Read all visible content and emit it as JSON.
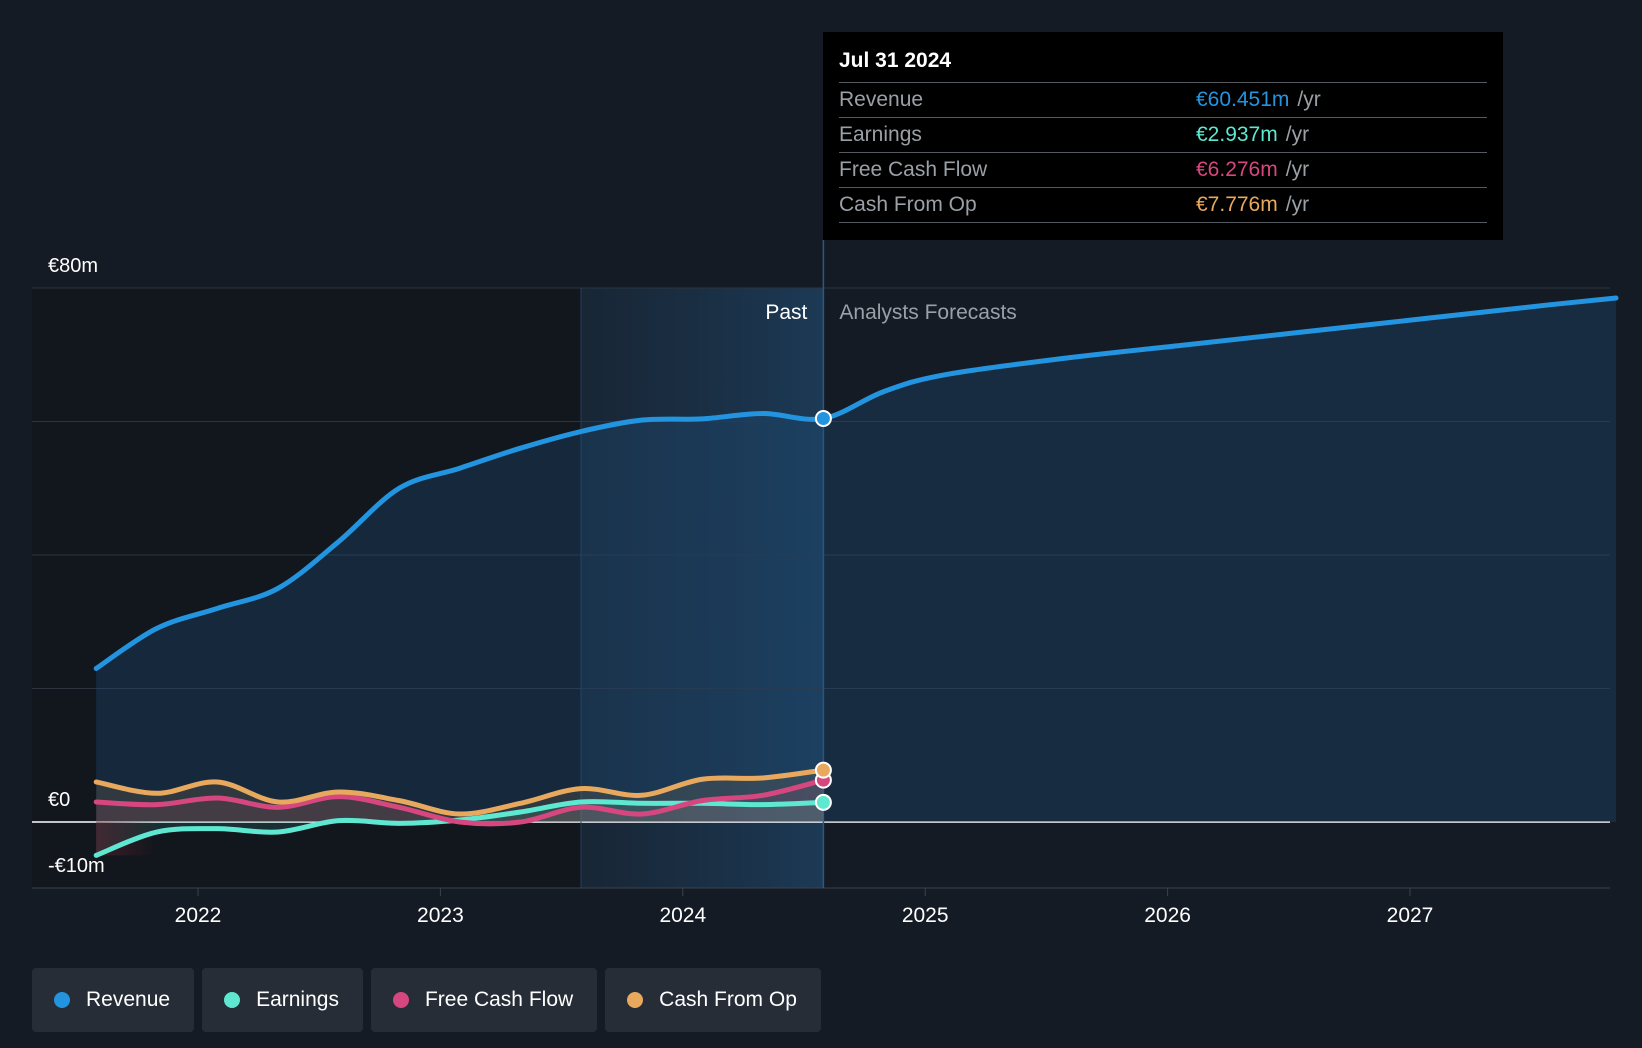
{
  "tooltip": {
    "date": "Jul 31 2024",
    "rows": [
      {
        "label": "Revenue",
        "value": "€60.451m",
        "unit": "/yr",
        "color": "#2394df"
      },
      {
        "label": "Earnings",
        "value": "€2.937m",
        "unit": "/yr",
        "color": "#5ee8d2"
      },
      {
        "label": "Free Cash Flow",
        "value": "€6.276m",
        "unit": "/yr",
        "color": "#d6477f"
      },
      {
        "label": "Cash From Op",
        "value": "€7.776m",
        "unit": "/yr",
        "color": "#e8a95e"
      }
    ]
  },
  "legend": [
    {
      "label": "Revenue",
      "color": "#2394df"
    },
    {
      "label": "Earnings",
      "color": "#5ee8d2"
    },
    {
      "label": "Free Cash Flow",
      "color": "#d6477f"
    },
    {
      "label": "Cash From Op",
      "color": "#e8a95e"
    }
  ],
  "chart_data": {
    "type": "line",
    "title": "",
    "xlabel": "",
    "ylabel": "",
    "ylim": [
      -10,
      80
    ],
    "xlim": [
      2021.58,
      2027.85
    ],
    "y_axis_labels": [
      {
        "value": 80,
        "label": "€80m"
      },
      {
        "value": 0,
        "label": "€0"
      },
      {
        "value": -10,
        "label": "-€10m"
      }
    ],
    "gridlines": [
      80,
      60,
      40,
      20,
      0
    ],
    "x_ticks": [
      2022,
      2023,
      2024,
      2025,
      2026,
      2027
    ],
    "past_label": "Past",
    "forecast_label": "Analysts Forecasts",
    "divider_x": 2024.58,
    "shade_start_x": 2023.58,
    "series": [
      {
        "name": "Revenue",
        "color": "#2394df",
        "points": [
          [
            2021.58,
            23
          ],
          [
            2021.83,
            29
          ],
          [
            2022.08,
            32
          ],
          [
            2022.33,
            35
          ],
          [
            2022.58,
            42
          ],
          [
            2022.83,
            50
          ],
          [
            2023.08,
            53
          ],
          [
            2023.33,
            56
          ],
          [
            2023.58,
            58.5
          ],
          [
            2023.83,
            60.2
          ],
          [
            2024.08,
            60.4
          ],
          [
            2024.33,
            61.2
          ],
          [
            2024.58,
            60.451
          ],
          [
            2024.83,
            64.5
          ],
          [
            2025.08,
            67
          ],
          [
            2025.58,
            69.5
          ],
          [
            2026.08,
            71.5
          ],
          [
            2026.58,
            73.5
          ],
          [
            2027.08,
            75.5
          ],
          [
            2027.58,
            77.5
          ],
          [
            2027.85,
            78.5
          ]
        ],
        "end_marker": [
          2024.58,
          60.451
        ]
      },
      {
        "name": "Earnings",
        "color": "#5ee8d2",
        "points": [
          [
            2021.58,
            -5
          ],
          [
            2021.83,
            -1.5
          ],
          [
            2022.08,
            -1
          ],
          [
            2022.33,
            -1.5
          ],
          [
            2022.58,
            0.2
          ],
          [
            2022.83,
            -0.2
          ],
          [
            2023.08,
            0.3
          ],
          [
            2023.33,
            1.5
          ],
          [
            2023.58,
            3
          ],
          [
            2023.83,
            2.8
          ],
          [
            2024.08,
            2.8
          ],
          [
            2024.33,
            2.6
          ],
          [
            2024.58,
            2.937
          ]
        ],
        "end_marker": [
          2024.58,
          2.937
        ]
      },
      {
        "name": "Free Cash Flow",
        "color": "#d6477f",
        "points": [
          [
            2021.58,
            3
          ],
          [
            2021.83,
            2.6
          ],
          [
            2022.08,
            3.6
          ],
          [
            2022.33,
            2.2
          ],
          [
            2022.58,
            3.8
          ],
          [
            2022.83,
            2.2
          ],
          [
            2023.08,
            0
          ],
          [
            2023.33,
            0
          ],
          [
            2023.58,
            2.2
          ],
          [
            2023.83,
            1.2
          ],
          [
            2024.08,
            3.2
          ],
          [
            2024.33,
            4
          ],
          [
            2024.58,
            6.276
          ]
        ],
        "end_marker": [
          2024.58,
          6.276
        ]
      },
      {
        "name": "Cash From Op",
        "color": "#e8a95e",
        "points": [
          [
            2021.58,
            6
          ],
          [
            2021.83,
            4.3
          ],
          [
            2022.08,
            6
          ],
          [
            2022.33,
            3
          ],
          [
            2022.58,
            4.5
          ],
          [
            2022.83,
            3.2
          ],
          [
            2023.08,
            1.2
          ],
          [
            2023.33,
            2.8
          ],
          [
            2023.58,
            5
          ],
          [
            2023.83,
            4
          ],
          [
            2024.08,
            6.4
          ],
          [
            2024.33,
            6.6
          ],
          [
            2024.58,
            7.776
          ]
        ],
        "end_marker": [
          2024.58,
          7.776
        ]
      }
    ]
  }
}
